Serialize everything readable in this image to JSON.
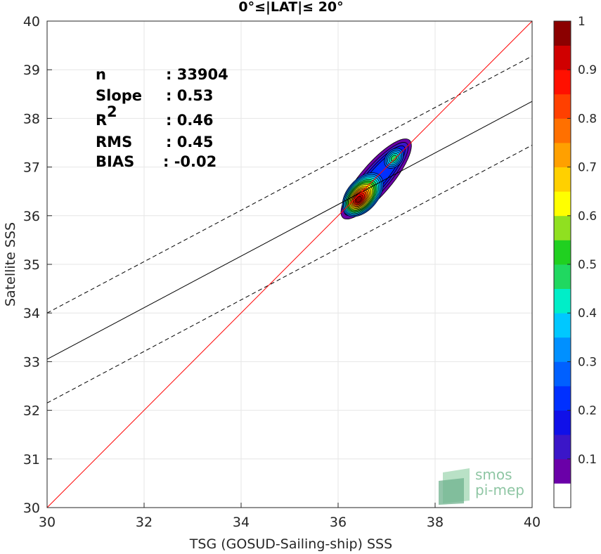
{
  "chart_data": {
    "type": "scatter",
    "title": "0°≤|LAT|≤ 20°",
    "xlabel": "TSG (GOSUD-Sailing-ship) SSS",
    "ylabel": "Satellite SSS",
    "xlim": [
      30,
      40
    ],
    "ylim": [
      30,
      40
    ],
    "xticks": [
      "30",
      "32",
      "34",
      "36",
      "38",
      "40"
    ],
    "yticks": [
      "30",
      "31",
      "32",
      "33",
      "34",
      "35",
      "36",
      "37",
      "38",
      "39",
      "40"
    ],
    "grid": true,
    "stats": [
      {
        "label": "n",
        "sep": ": 33904"
      },
      {
        "label": "Slope",
        "sep": ": 0.53"
      },
      {
        "label": "R",
        "sup": "2",
        "sep": ": 0.46"
      },
      {
        "label": "RMS",
        "sep": ": 0.45"
      },
      {
        "label": "BIAS",
        "sep": ": -0.02"
      }
    ],
    "lines": {
      "identity": {
        "x": [
          30,
          40
        ],
        "y": [
          30,
          40
        ],
        "color": "#ff0000"
      },
      "fit": {
        "x": [
          30,
          40
        ],
        "y": [
          33.05,
          38.35
        ],
        "color": "#000000"
      },
      "fit_upper": {
        "x": [
          30,
          40
        ],
        "y": [
          34.0,
          39.28
        ],
        "color": "#000000",
        "dash": true
      },
      "fit_lower": {
        "x": [
          30,
          40
        ],
        "y": [
          32.15,
          37.45
        ],
        "color": "#000000",
        "dash": true
      }
    },
    "density_peaks": [
      {
        "x": 36.42,
        "y": 36.33,
        "value": 1.0
      },
      {
        "x": 37.15,
        "y": 37.18,
        "value": 0.45
      }
    ],
    "colorbar": {
      "range": [
        0,
        1
      ],
      "ticks": [
        "0.1",
        "0.2",
        "0.3",
        "0.4",
        "0.5",
        "0.6",
        "0.7",
        "0.8",
        "0.9",
        "1"
      ],
      "colors": [
        "#ffffff",
        "#6a00a8",
        "#3b16c8",
        "#1010e8",
        "#0030ff",
        "#0060ff",
        "#0090ff",
        "#00c8ff",
        "#00eec8",
        "#20d860",
        "#20d020",
        "#90e020",
        "#ffff00",
        "#ffd000",
        "#ffa000",
        "#ff7000",
        "#ff4000",
        "#ff1000",
        "#d00000",
        "#8b0000"
      ]
    },
    "logo": {
      "line1": "smos",
      "line2": "pi-mep"
    }
  }
}
